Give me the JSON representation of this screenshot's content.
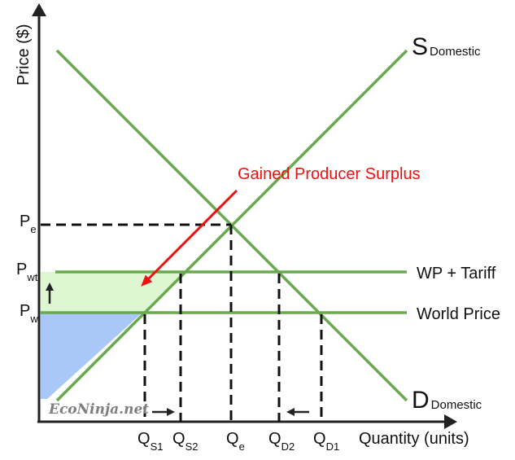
{
  "axes": {
    "y_label": "Price ($)",
    "x_label": "Quantity (units)"
  },
  "curves": {
    "supply": {
      "main": "S",
      "sub": "Domestic"
    },
    "demand": {
      "main": "D",
      "sub": "Domestic"
    },
    "wp_tariff": "WP + Tariff",
    "world_price": "World Price"
  },
  "price_labels": [
    {
      "main": "P",
      "sub": "e"
    },
    {
      "main": "P",
      "sub": "wt"
    },
    {
      "main": "P",
      "sub": "w"
    }
  ],
  "quantity_labels": [
    {
      "main": "Q",
      "sub": "S1"
    },
    {
      "main": "Q",
      "sub": "S2"
    },
    {
      "main": "Q",
      "sub": "e"
    },
    {
      "main": "Q",
      "sub": "D2"
    },
    {
      "main": "Q",
      "sub": "D1"
    }
  ],
  "annotation": "Gained Producer Surplus",
  "watermark": "EcoNinja.net",
  "colors": {
    "curve_green": "#6aaa4e",
    "producer_surplus_blue": "#a9c8f7",
    "gained_surplus_green": "#def7d2",
    "annotation_red": "#ee1111",
    "axis": "#222222"
  }
}
